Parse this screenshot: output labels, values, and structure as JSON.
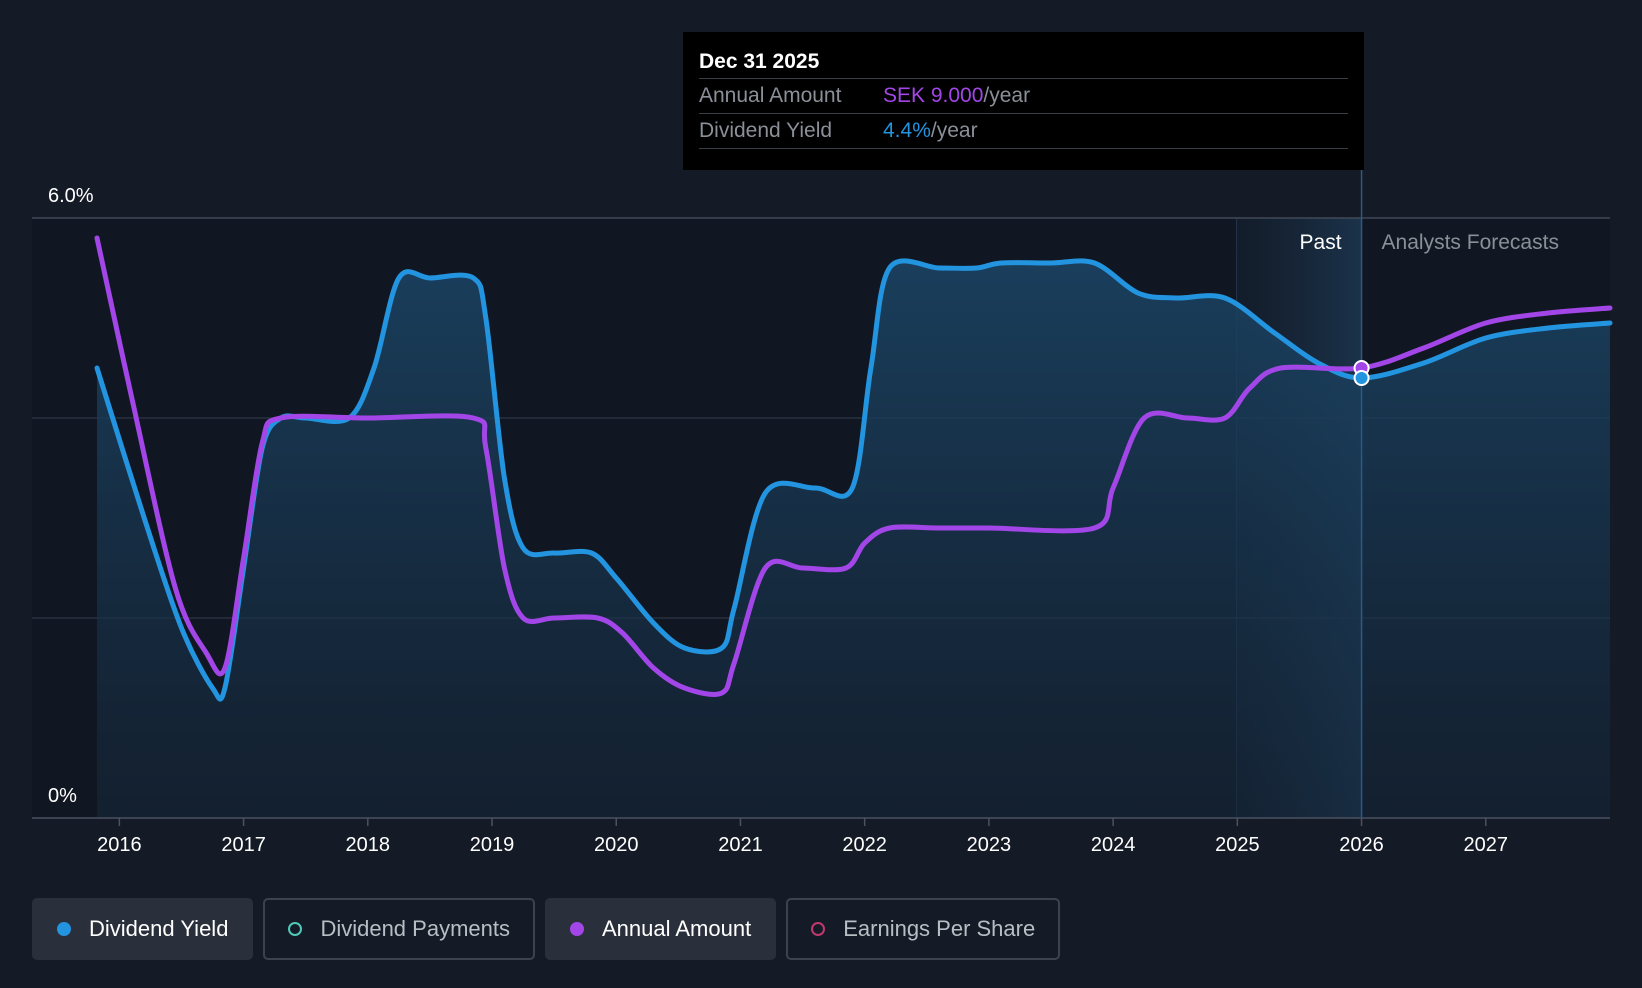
{
  "colors": {
    "background": "#151b26",
    "dividend_yield": "#2394df",
    "annual_amount": "#a346e8",
    "dividend_payments": "#4fc8b8",
    "earnings_per_share": "#c0386e"
  },
  "tooltip": {
    "date": "Dec 31 2025",
    "rows": [
      {
        "label": "Annual Amount",
        "value": "SEK 9.000",
        "unit": "/year"
      },
      {
        "label": "Dividend Yield",
        "value": "4.4%",
        "unit": "/year"
      }
    ]
  },
  "legend": [
    {
      "label": "Dividend Yield",
      "active": true,
      "color": "#2394df",
      "filled": true
    },
    {
      "label": "Dividend Payments",
      "active": false,
      "color": "#4fc8b8",
      "filled": false
    },
    {
      "label": "Annual Amount",
      "active": true,
      "color": "#a346e8",
      "filled": true
    },
    {
      "label": "Earnings Per Share",
      "active": false,
      "color": "#c0386e",
      "filled": false
    }
  ],
  "chart_data": {
    "type": "line",
    "y_tick_labels": [
      "6.0%",
      "0%"
    ],
    "ylim": [
      0,
      6
    ],
    "x_tick_labels": [
      "2016",
      "2017",
      "2018",
      "2019",
      "2020",
      "2021",
      "2022",
      "2023",
      "2024",
      "2025",
      "2026",
      "2027"
    ],
    "xlim": [
      2015.82,
      2028.0
    ],
    "grid": true,
    "regions": {
      "past_label": "Past",
      "forecast_label": "Analysts Forecasts",
      "divider_x": 2026.0
    },
    "highlight_x": 2026.0,
    "series": [
      {
        "name": "Dividend Yield",
        "color": "#2394df",
        "area": true,
        "points": [
          [
            2015.82,
            4.5
          ],
          [
            2016.2,
            3.0
          ],
          [
            2016.5,
            1.9
          ],
          [
            2016.75,
            1.3
          ],
          [
            2016.85,
            1.3
          ],
          [
            2017.0,
            2.5
          ],
          [
            2017.15,
            3.7
          ],
          [
            2017.3,
            4.0
          ],
          [
            2017.5,
            4.0
          ],
          [
            2017.85,
            4.0
          ],
          [
            2018.05,
            4.5
          ],
          [
            2018.25,
            5.4
          ],
          [
            2018.5,
            5.4
          ],
          [
            2018.85,
            5.4
          ],
          [
            2018.95,
            5.0
          ],
          [
            2019.1,
            3.4
          ],
          [
            2019.25,
            2.7
          ],
          [
            2019.5,
            2.65
          ],
          [
            2019.8,
            2.65
          ],
          [
            2020.0,
            2.4
          ],
          [
            2020.3,
            1.95
          ],
          [
            2020.55,
            1.7
          ],
          [
            2020.85,
            1.7
          ],
          [
            2020.95,
            2.1
          ],
          [
            2021.2,
            3.25
          ],
          [
            2021.6,
            3.3
          ],
          [
            2021.9,
            3.3
          ],
          [
            2022.05,
            4.5
          ],
          [
            2022.2,
            5.5
          ],
          [
            2022.6,
            5.5
          ],
          [
            2022.9,
            5.5
          ],
          [
            2023.1,
            5.55
          ],
          [
            2023.5,
            5.55
          ],
          [
            2023.85,
            5.55
          ],
          [
            2024.2,
            5.25
          ],
          [
            2024.5,
            5.2
          ],
          [
            2024.9,
            5.2
          ],
          [
            2025.3,
            4.85
          ],
          [
            2025.65,
            4.55
          ],
          [
            2026.0,
            4.4
          ],
          [
            2026.5,
            4.55
          ],
          [
            2027.0,
            4.8
          ],
          [
            2027.5,
            4.9
          ],
          [
            2028.0,
            4.95
          ]
        ]
      },
      {
        "name": "Annual Amount",
        "color": "#a346e8",
        "area": false,
        "points": [
          [
            2015.82,
            5.8
          ],
          [
            2016.1,
            4.2
          ],
          [
            2016.45,
            2.3
          ],
          [
            2016.7,
            1.65
          ],
          [
            2016.85,
            1.5
          ],
          [
            2017.0,
            2.6
          ],
          [
            2017.15,
            3.75
          ],
          [
            2017.3,
            4.0
          ],
          [
            2018.0,
            4.0
          ],
          [
            2018.85,
            4.0
          ],
          [
            2018.95,
            3.7
          ],
          [
            2019.1,
            2.5
          ],
          [
            2019.25,
            2.0
          ],
          [
            2019.5,
            2.0
          ],
          [
            2019.85,
            2.0
          ],
          [
            2020.05,
            1.85
          ],
          [
            2020.3,
            1.5
          ],
          [
            2020.55,
            1.3
          ],
          [
            2020.85,
            1.25
          ],
          [
            2020.95,
            1.55
          ],
          [
            2021.2,
            2.5
          ],
          [
            2021.5,
            2.5
          ],
          [
            2021.85,
            2.5
          ],
          [
            2022.0,
            2.75
          ],
          [
            2022.2,
            2.9
          ],
          [
            2022.6,
            2.9
          ],
          [
            2023.0,
            2.9
          ],
          [
            2023.85,
            2.9
          ],
          [
            2024.0,
            3.3
          ],
          [
            2024.25,
            4.0
          ],
          [
            2024.6,
            4.0
          ],
          [
            2024.9,
            4.0
          ],
          [
            2025.1,
            4.3
          ],
          [
            2025.35,
            4.5
          ],
          [
            2026.0,
            4.5
          ],
          [
            2026.5,
            4.7
          ],
          [
            2027.0,
            4.95
          ],
          [
            2027.5,
            5.05
          ],
          [
            2028.0,
            5.1
          ]
        ]
      }
    ]
  }
}
